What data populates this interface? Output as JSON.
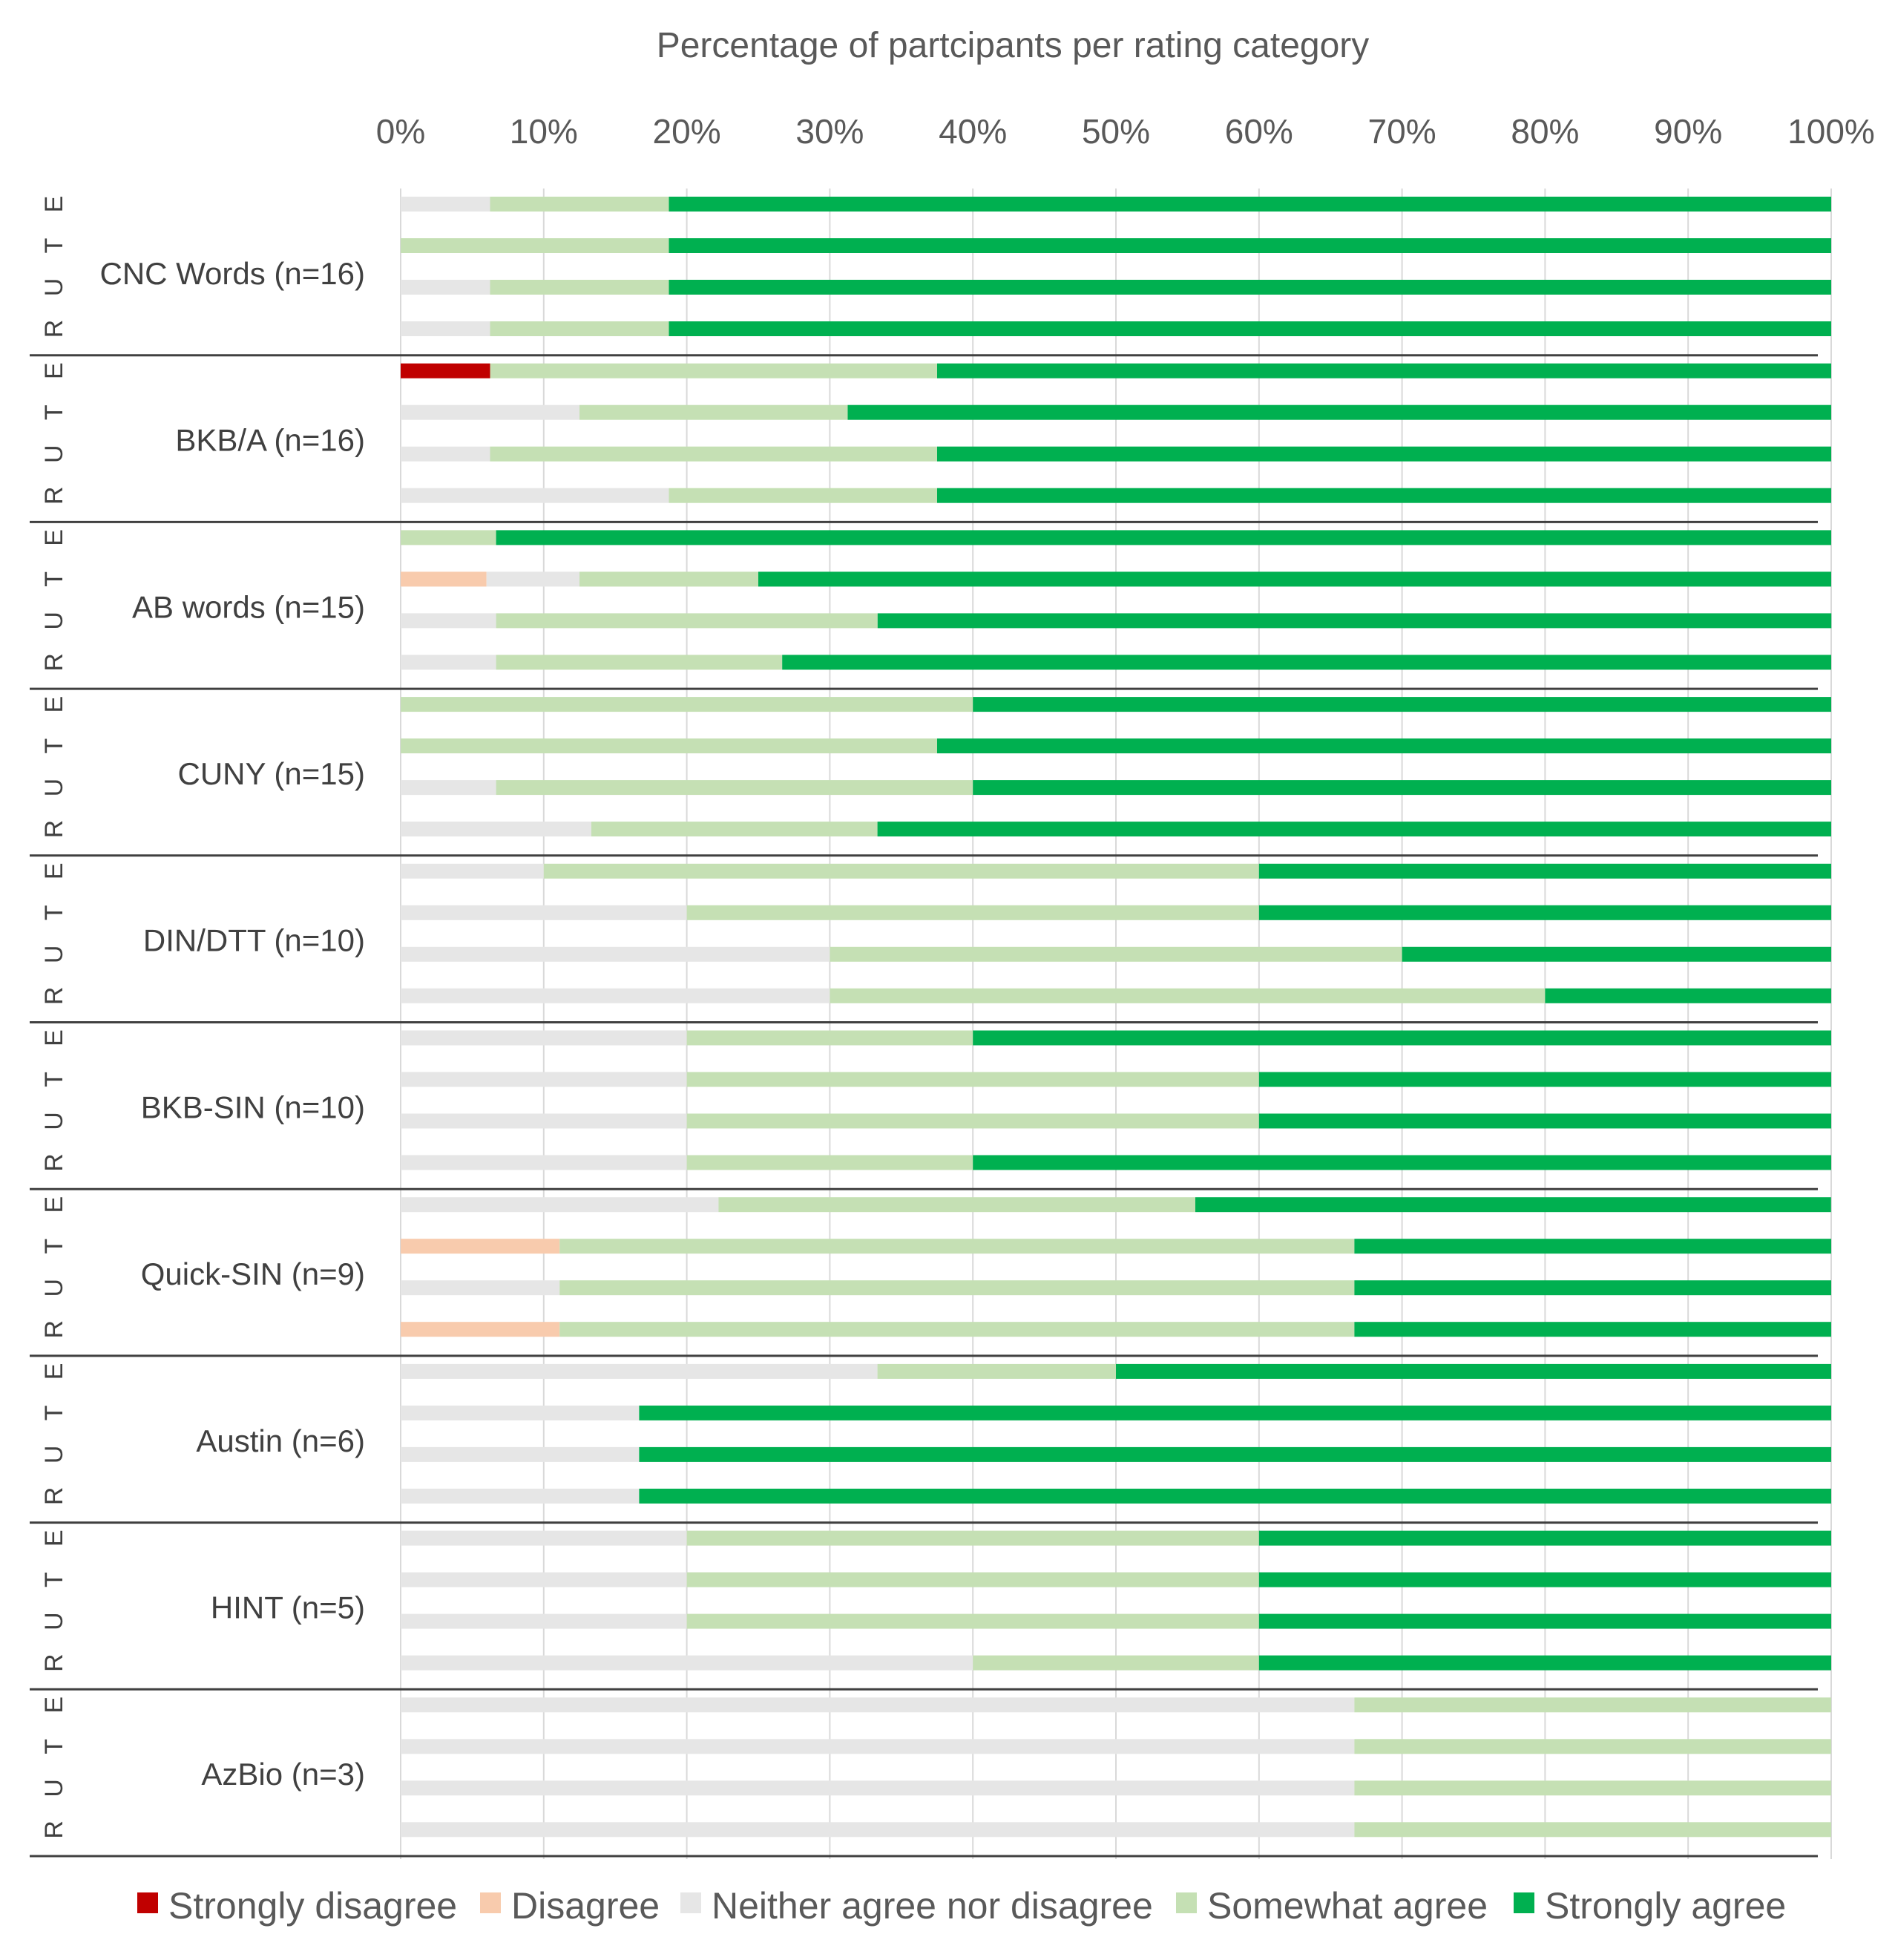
{
  "chart_data": {
    "type": "bar",
    "orientation": "horizontal",
    "stacked": true,
    "title": "Percentage of partcipants per rating category",
    "xlim": [
      0,
      100
    ],
    "x_ticks": [
      "0%",
      "10%",
      "20%",
      "30%",
      "40%",
      "50%",
      "60%",
      "70%",
      "80%",
      "90%",
      "100%"
    ],
    "grid": true,
    "legend_position": "bottom",
    "series": [
      {
        "name": "Strongly disagree",
        "color": "#c00000"
      },
      {
        "name": "Disagree",
        "color": "#f8cbad"
      },
      {
        "name": "Neither agree nor disagree",
        "color": "#e6e6e6"
      },
      {
        "name": "Somewhat agree",
        "color": "#c5e0b4"
      },
      {
        "name": "Strongly agree",
        "color": "#00b050"
      }
    ],
    "row_labels": [
      "E",
      "T",
      "U",
      "R"
    ],
    "groups": [
      {
        "label": "CNC Words (n=16)",
        "rows": [
          {
            "letter": "E",
            "values": [
              0,
              0,
              6.25,
              12.5,
              81.25
            ]
          },
          {
            "letter": "T",
            "values": [
              0,
              0,
              0,
              18.75,
              81.25
            ]
          },
          {
            "letter": "U",
            "values": [
              0,
              0,
              6.25,
              12.5,
              81.25
            ]
          },
          {
            "letter": "R",
            "values": [
              0,
              0,
              6.25,
              12.5,
              81.25
            ]
          }
        ]
      },
      {
        "label": "BKB/A (n=16)",
        "rows": [
          {
            "letter": "E",
            "values": [
              6.25,
              0,
              0,
              31.25,
              62.5
            ]
          },
          {
            "letter": "T",
            "values": [
              0,
              0,
              12.5,
              18.75,
              68.75
            ]
          },
          {
            "letter": "U",
            "values": [
              0,
              0,
              6.25,
              31.25,
              62.5
            ]
          },
          {
            "letter": "R",
            "values": [
              0,
              0,
              18.75,
              18.75,
              62.5
            ]
          }
        ]
      },
      {
        "label": "AB words (n=15)",
        "rows": [
          {
            "letter": "E",
            "values": [
              0,
              0,
              0,
              6.67,
              93.33
            ]
          },
          {
            "letter": "T",
            "values": [
              0,
              6.0,
              6.5,
              12.5,
              75.0
            ]
          },
          {
            "letter": "U",
            "values": [
              0,
              0,
              6.67,
              26.67,
              66.67
            ]
          },
          {
            "letter": "R",
            "values": [
              0,
              0,
              6.67,
              20.0,
              73.33
            ]
          }
        ]
      },
      {
        "label": "CUNY (n=15)",
        "rows": [
          {
            "letter": "E",
            "values": [
              0,
              0,
              0,
              40.0,
              60.0
            ]
          },
          {
            "letter": "T",
            "values": [
              0,
              0,
              0,
              37.5,
              62.5
            ]
          },
          {
            "letter": "U",
            "values": [
              0,
              0,
              6.67,
              33.33,
              60.0
            ]
          },
          {
            "letter": "R",
            "values": [
              0,
              0,
              13.33,
              20.0,
              66.67
            ]
          }
        ]
      },
      {
        "label": "DIN/DTT (n=10)",
        "rows": [
          {
            "letter": "E",
            "values": [
              0,
              0,
              10,
              50,
              40
            ]
          },
          {
            "letter": "T",
            "values": [
              0,
              0,
              20,
              40,
              40
            ]
          },
          {
            "letter": "U",
            "values": [
              0,
              0,
              30,
              40,
              30
            ]
          },
          {
            "letter": "R",
            "values": [
              0,
              0,
              30,
              50,
              20
            ]
          }
        ]
      },
      {
        "label": "BKB-SIN (n=10)",
        "rows": [
          {
            "letter": "E",
            "values": [
              0,
              0,
              20,
              20,
              60
            ]
          },
          {
            "letter": "T",
            "values": [
              0,
              0,
              20,
              40,
              40
            ]
          },
          {
            "letter": "U",
            "values": [
              0,
              0,
              20,
              40,
              40
            ]
          },
          {
            "letter": "R",
            "values": [
              0,
              0,
              20,
              20,
              60
            ]
          }
        ]
      },
      {
        "label": "Quick-SIN (n=9)",
        "rows": [
          {
            "letter": "E",
            "values": [
              0,
              0,
              22.22,
              33.33,
              44.44
            ]
          },
          {
            "letter": "T",
            "values": [
              0,
              11.11,
              0,
              55.56,
              33.33
            ]
          },
          {
            "letter": "U",
            "values": [
              0,
              0,
              11.11,
              55.56,
              33.33
            ]
          },
          {
            "letter": "R",
            "values": [
              0,
              11.11,
              0,
              55.56,
              33.33
            ]
          }
        ]
      },
      {
        "label": "Austin (n=6)",
        "rows": [
          {
            "letter": "E",
            "values": [
              0,
              0,
              33.33,
              16.67,
              50.0
            ]
          },
          {
            "letter": "T",
            "values": [
              0,
              0,
              16.67,
              0,
              83.33
            ]
          },
          {
            "letter": "U",
            "values": [
              0,
              0,
              16.67,
              0,
              83.33
            ]
          },
          {
            "letter": "R",
            "values": [
              0,
              0,
              16.67,
              0,
              83.33
            ]
          }
        ]
      },
      {
        "label": "HINT (n=5)",
        "rows": [
          {
            "letter": "E",
            "values": [
              0,
              0,
              20,
              40,
              40
            ]
          },
          {
            "letter": "T",
            "values": [
              0,
              0,
              20,
              40,
              40
            ]
          },
          {
            "letter": "U",
            "values": [
              0,
              0,
              20,
              40,
              40
            ]
          },
          {
            "letter": "R",
            "values": [
              0,
              0,
              40,
              20,
              40
            ]
          }
        ]
      },
      {
        "label": "AzBio (n=3)",
        "rows": [
          {
            "letter": "E",
            "values": [
              0,
              0,
              66.67,
              33.33,
              0
            ]
          },
          {
            "letter": "T",
            "values": [
              0,
              0,
              66.67,
              33.33,
              0
            ]
          },
          {
            "letter": "U",
            "values": [
              0,
              0,
              66.67,
              33.33,
              0
            ]
          },
          {
            "letter": "R",
            "values": [
              0,
              0,
              66.67,
              33.33,
              0
            ]
          }
        ]
      }
    ]
  }
}
